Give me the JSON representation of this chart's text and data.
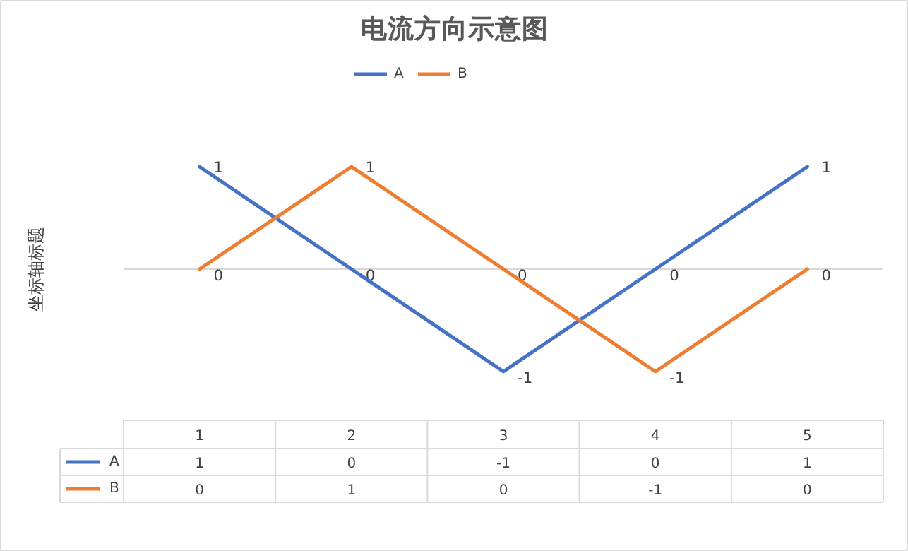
{
  "chart_data": {
    "type": "line",
    "title": "电流方向示意图",
    "ylabel": "坐标轴标题",
    "categories": [
      "1",
      "2",
      "3",
      "4",
      "5"
    ],
    "series": [
      {
        "name": "A",
        "color": "#4472c4",
        "values": [
          1,
          0,
          -1,
          0,
          1
        ]
      },
      {
        "name": "B",
        "color": "#ed7d31",
        "values": [
          0,
          1,
          0,
          -1,
          0
        ]
      }
    ],
    "annotations": [
      {
        "text": "1",
        "x": "1",
        "y": 1
      },
      {
        "text": "0",
        "x": "2",
        "y": 0
      },
      {
        "text": "-1",
        "x": "3",
        "y": -1
      },
      {
        "text": "0",
        "x": "4",
        "y": 0
      },
      {
        "text": "1",
        "x": "5",
        "y": 1
      },
      {
        "text": "0",
        "x": "1",
        "y": 0
      },
      {
        "text": "1",
        "x": "2",
        "y": 1
      },
      {
        "text": "0",
        "x": "3",
        "y": 0
      },
      {
        "text": "-1",
        "x": "4",
        "y": -1
      },
      {
        "text": "0",
        "x": "5",
        "y": 0
      }
    ],
    "data_labels": true,
    "legend": "top"
  }
}
